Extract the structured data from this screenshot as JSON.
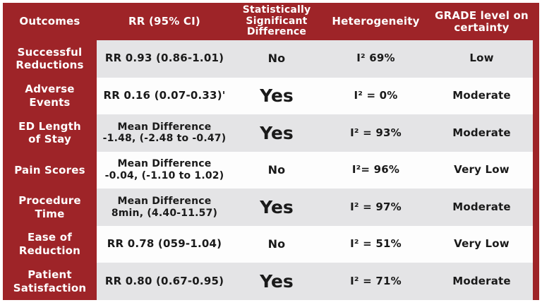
{
  "colors": {
    "brand_red": "#9e2428",
    "row_gray": "#e4e4e6",
    "row_white": "#fdfdfd",
    "header_text": "#ffffff",
    "body_text": "#1a1a1a",
    "page_background": "#ffffff"
  },
  "header": {
    "outcomes": "Outcomes",
    "rr": "RR (95% CI)",
    "significance": "Statistically\nSignificant\nDifference",
    "heterogeneity": "Heterogeneity",
    "grade": "GRADE level on\ncertainty"
  },
  "rows": [
    {
      "outcome": "Successful\nReductions",
      "rr": "RR 0.93 (0.86-1.01)",
      "significant": "No",
      "heterogeneity": "I² 69%",
      "grade": "Low"
    },
    {
      "outcome": "Adverse\nEvents",
      "rr": "RR 0.16 (0.07-0.33)'",
      "significant": "Yes",
      "heterogeneity": "I² = 0%",
      "grade": "Moderate"
    },
    {
      "outcome": "ED Length\nof Stay",
      "rr": "Mean Difference\n-1.48, (-2.48 to -0.47)",
      "significant": "Yes",
      "heterogeneity": "I² = 93%",
      "grade": "Moderate"
    },
    {
      "outcome": "Pain Scores",
      "rr": "Mean Difference\n-0.04, (-1.10 to 1.02)",
      "significant": "No",
      "heterogeneity": "I²= 96%",
      "grade": "Very Low"
    },
    {
      "outcome": "Procedure\nTime",
      "rr": "Mean Difference\n8min,  (4.40-11.57)",
      "significant": "Yes",
      "heterogeneity": "I² = 97%",
      "grade": "Moderate"
    },
    {
      "outcome": "Ease of\nReduction",
      "rr": "RR 0.78 (059-1.04)",
      "significant": "No",
      "heterogeneity": "I² = 51%",
      "grade": "Very Low"
    },
    {
      "outcome": "Patient\nSatisfaction",
      "rr": "RR 0.80 (0.67-0.95)",
      "significant": "Yes",
      "heterogeneity": "I² = 71%",
      "grade": "Moderate"
    }
  ],
  "chart_data": {
    "type": "table",
    "title": "Outcomes summary with RR (95% CI), statistical significance, heterogeneity and GRADE certainty",
    "columns": [
      "Outcomes",
      "RR (95% CI)",
      "Statistically Significant Difference",
      "Heterogeneity",
      "GRADE level on certainty"
    ],
    "rows": [
      [
        "Successful Reductions",
        "RR 0.93 (0.86-1.01)",
        "No",
        "I² 69%",
        "Low"
      ],
      [
        "Adverse Events",
        "RR 0.16 (0.07-0.33)",
        "Yes",
        "I² = 0%",
        "Moderate"
      ],
      [
        "ED Length of Stay",
        "Mean Difference -1.48, (-2.48 to -0.47)",
        "Yes",
        "I² = 93%",
        "Moderate"
      ],
      [
        "Pain Scores",
        "Mean Difference -0.04, (-1.10 to 1.02)",
        "No",
        "I²= 96%",
        "Very Low"
      ],
      [
        "Procedure Time",
        "Mean Difference 8min, (4.40-11.57)",
        "Yes",
        "I² = 97%",
        "Moderate"
      ],
      [
        "Ease of Reduction",
        "RR 0.78 (059-1.04)",
        "No",
        "I² = 51%",
        "Very Low"
      ],
      [
        "Patient Satisfaction",
        "RR 0.80 (0.67-0.95)",
        "Yes",
        "I² = 71%",
        "Moderate"
      ]
    ],
    "legend_position": "none",
    "grid": false
  }
}
